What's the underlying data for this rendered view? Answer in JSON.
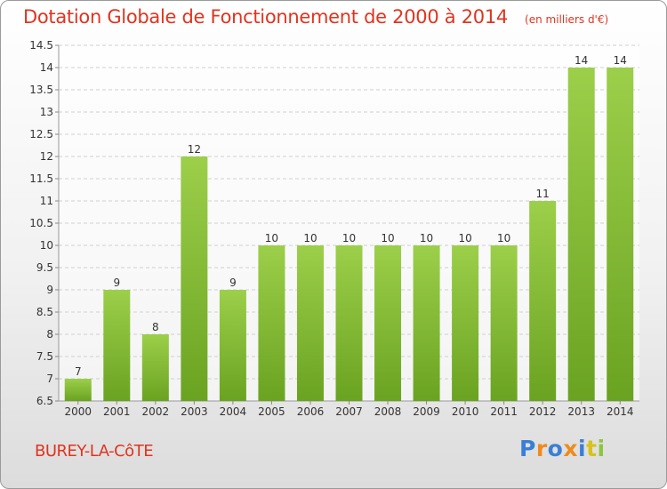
{
  "title": "Dotation Globale de Fonctionnement de 2000 à 2014",
  "subtitle": "(en milliers d'€)",
  "place_name": "BUREY-LA-CôTE",
  "logo": {
    "text": "Proxiti",
    "letter_colors": [
      "#3a7fd5",
      "#f08a1c",
      "#3a7fd5",
      "#f08a1c",
      "#3a7fd5",
      "#d8c21b",
      "#8cc63f"
    ]
  },
  "colors": {
    "title": "#e0341f",
    "bar_light": "#9ccf4a",
    "bar_dark": "#6aa321",
    "grid": "#d0d0d0",
    "axis_text": "#333333"
  },
  "chart_data": {
    "type": "bar",
    "title": "Dotation Globale de Fonctionnement de 2000 à 2014",
    "subtitle": "(en milliers d'€)",
    "categories": [
      "2000",
      "2001",
      "2002",
      "2003",
      "2004",
      "2005",
      "2006",
      "2007",
      "2008",
      "2009",
      "2010",
      "2011",
      "2012",
      "2013",
      "2014"
    ],
    "values": [
      7,
      9,
      8,
      12,
      9,
      10,
      10,
      10,
      10,
      10,
      10,
      10,
      11,
      14,
      14
    ],
    "ylim": [
      6.5,
      14.5
    ],
    "yticks": [
      "6.5",
      "7",
      "7.5",
      "8",
      "8.5",
      "9",
      "9.5",
      "10",
      "10.5",
      "11",
      "11.5",
      "12",
      "12.5",
      "13",
      "13.5",
      "14",
      "14.5"
    ],
    "grid": true,
    "xlabel": "",
    "ylabel": ""
  }
}
